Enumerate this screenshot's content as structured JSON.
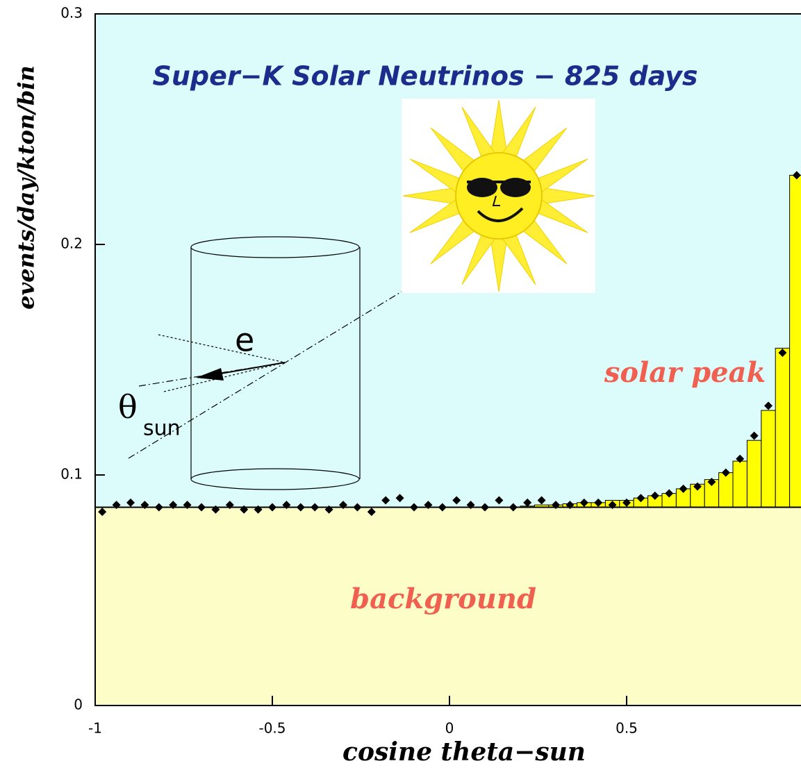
{
  "chart_data": {
    "type": "scatter",
    "title": "Super−K Solar Neutrinos − 825 days",
    "x_label": "cosine theta−sun",
    "y_label": "events/day/kton/bin",
    "xlim": [
      -1,
      1
    ],
    "ylim": [
      0,
      0.3
    ],
    "xticks": [
      -1,
      -0.5,
      0,
      0.5
    ],
    "yticks": [
      0,
      0.1,
      0.2,
      0.3
    ],
    "x": [
      -0.98,
      -0.94,
      -0.9,
      -0.86,
      -0.82,
      -0.78,
      -0.74,
      -0.7,
      -0.66,
      -0.62,
      -0.58,
      -0.54,
      -0.5,
      -0.46,
      -0.42,
      -0.38,
      -0.34,
      -0.3,
      -0.26,
      -0.22,
      -0.18,
      -0.14,
      -0.1,
      -0.06,
      -0.02,
      0.02,
      0.06,
      0.1,
      0.14,
      0.18,
      0.22,
      0.26,
      0.3,
      0.34,
      0.38,
      0.42,
      0.46,
      0.5,
      0.54,
      0.58,
      0.62,
      0.66,
      0.7,
      0.74,
      0.78,
      0.82,
      0.86,
      0.9,
      0.94,
      0.98
    ],
    "points": {
      "color": "#000000",
      "values": [
        0.084,
        0.087,
        0.088,
        0.087,
        0.086,
        0.087,
        0.087,
        0.086,
        0.085,
        0.087,
        0.085,
        0.085,
        0.086,
        0.087,
        0.086,
        0.086,
        0.085,
        0.087,
        0.086,
        0.084,
        0.089,
        0.09,
        0.086,
        0.087,
        0.086,
        0.089,
        0.087,
        0.086,
        0.089,
        0.086,
        0.088,
        0.089,
        0.087,
        0.087,
        0.088,
        0.088,
        0.087,
        0.088,
        0.09,
        0.091,
        0.092,
        0.094,
        0.095,
        0.097,
        0.101,
        0.107,
        0.117,
        0.13,
        0.153,
        0.23
      ]
    },
    "fit": {
      "color": "#ffff00",
      "values": [
        0.086,
        0.086,
        0.086,
        0.086,
        0.086,
        0.086,
        0.086,
        0.086,
        0.086,
        0.086,
        0.086,
        0.086,
        0.086,
        0.086,
        0.086,
        0.086,
        0.086,
        0.086,
        0.086,
        0.086,
        0.086,
        0.086,
        0.086,
        0.086,
        0.086,
        0.086,
        0.086,
        0.086,
        0.086,
        0.086,
        0.0865,
        0.087,
        0.087,
        0.0875,
        0.088,
        0.088,
        0.089,
        0.089,
        0.09,
        0.091,
        0.092,
        0.094,
        0.096,
        0.098,
        0.101,
        0.106,
        0.115,
        0.128,
        0.155,
        0.23
      ]
    },
    "background_level": 0.086,
    "background_color": "#fdfdc8",
    "plot_color": "#dcfcfc",
    "annotations": {
      "solar_peak": "solar peak",
      "background": "background",
      "electron": "e",
      "theta": "θ",
      "sun": "sun"
    }
  }
}
